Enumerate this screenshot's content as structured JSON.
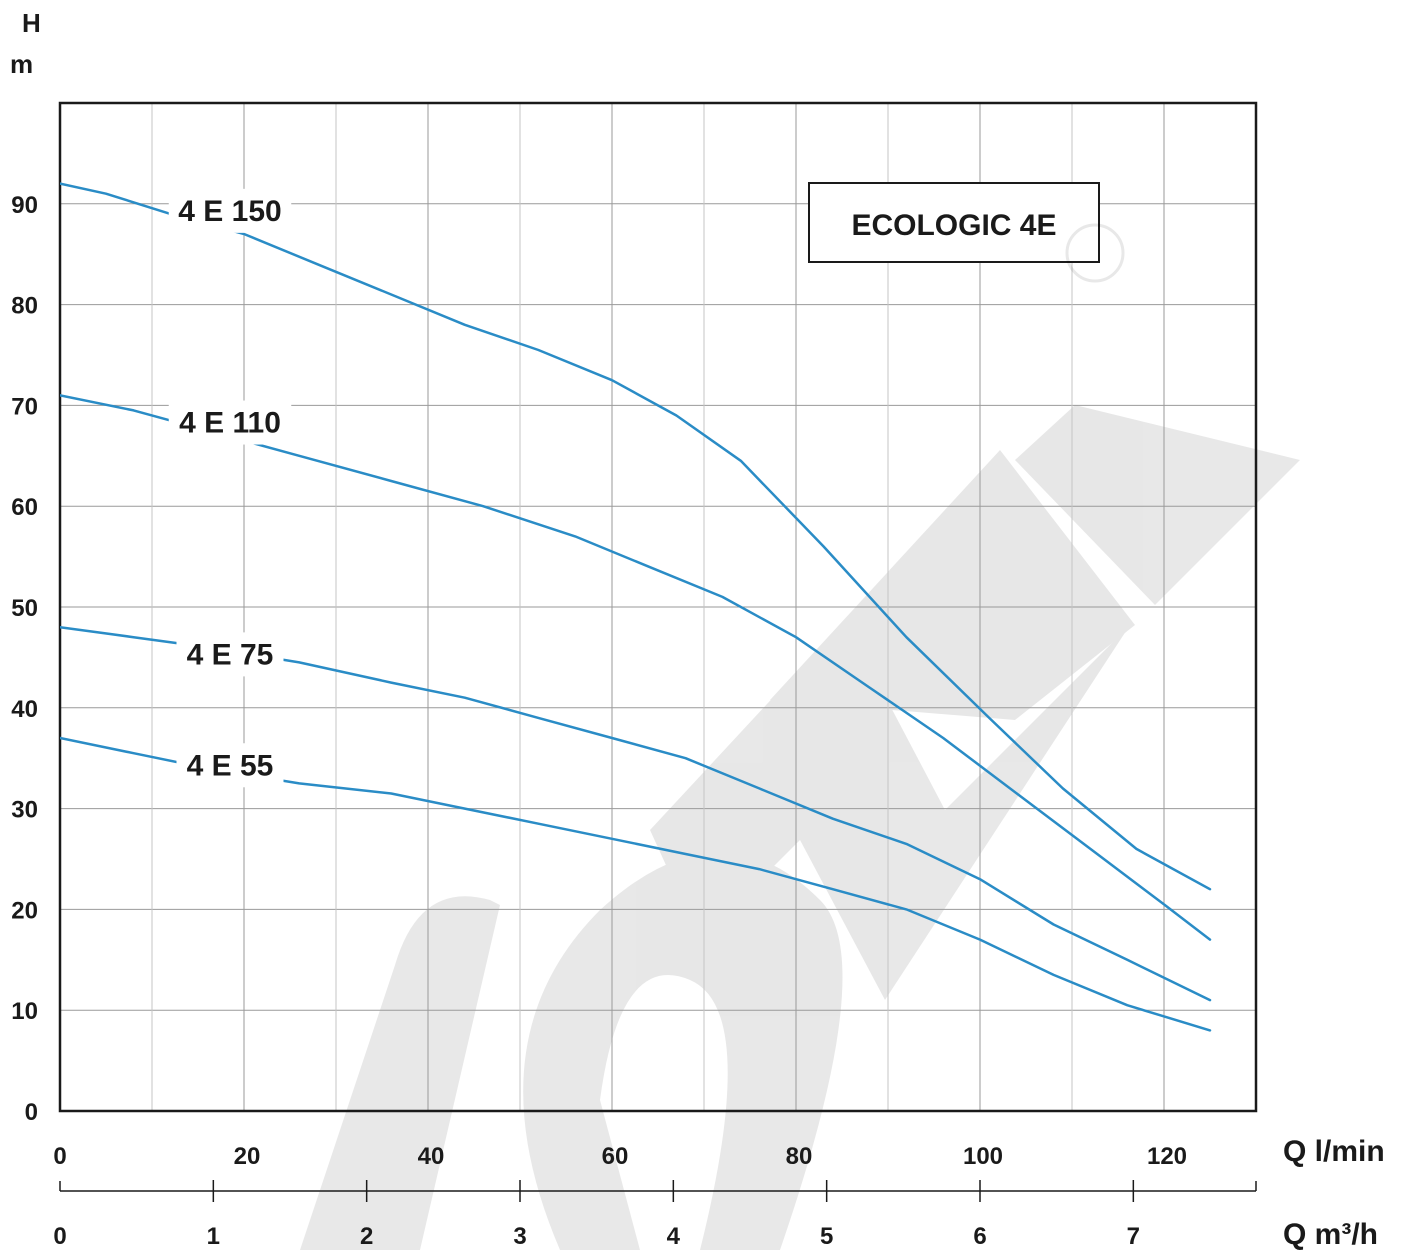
{
  "chart_data": {
    "type": "line",
    "ylabel_line1": "H",
    "ylabel_line2": "m",
    "ylim": [
      0,
      100
    ],
    "yticks": [
      "0",
      "10",
      "20",
      "30",
      "40",
      "50",
      "60",
      "70",
      "80",
      "90"
    ],
    "x_unit_lmin": "Q l/min",
    "x_unit_m3h": "Q m³/h",
    "x_ticks_lmin": [
      "0",
      "20",
      "40",
      "60",
      "80",
      "100",
      "120"
    ],
    "x_ticks_m3h": [
      "0",
      "1",
      "2",
      "3",
      "4",
      "5",
      "6",
      "7"
    ],
    "xlim_lmin": [
      0,
      130
    ],
    "grid": true,
    "annotation_box": "ECOLOGIC 4E",
    "watermark": "JOVAL",
    "series": [
      {
        "name": "4 E 150",
        "x": [
          0,
          5,
          12,
          20,
          28,
          36,
          44,
          52,
          60,
          67,
          74,
          83,
          92,
          101,
          109,
          117,
          125
        ],
        "y": [
          92,
          91,
          89,
          87,
          84,
          81,
          78,
          75.5,
          72.5,
          69,
          64.5,
          56,
          47,
          39,
          32,
          26,
          22
        ]
      },
      {
        "name": "4 E 110",
        "x": [
          0,
          8,
          16,
          26,
          36,
          46,
          56,
          64,
          72,
          80,
          88,
          96,
          104,
          112,
          120,
          125
        ],
        "y": [
          71,
          69.5,
          67.5,
          65,
          62.5,
          60,
          57,
          54,
          51,
          47,
          42,
          37,
          31.5,
          26,
          20.5,
          17
        ]
      },
      {
        "name": "4 E 75",
        "x": [
          0,
          8,
          16,
          26,
          36,
          44,
          52,
          60,
          68,
          76,
          84,
          92,
          100,
          108,
          116,
          125
        ],
        "y": [
          48,
          47,
          46,
          44.5,
          42.5,
          41,
          39,
          37,
          35,
          32,
          29,
          26.5,
          23,
          18.5,
          15,
          11
        ]
      },
      {
        "name": "4 E 55",
        "x": [
          0,
          8,
          16,
          26,
          36,
          44,
          52,
          60,
          68,
          76,
          84,
          92,
          100,
          108,
          116,
          125
        ],
        "y": [
          37,
          35.5,
          34,
          32.5,
          31.5,
          30,
          28.5,
          27,
          25.5,
          24,
          22,
          20,
          17,
          13.5,
          10.5,
          8
        ]
      }
    ]
  }
}
